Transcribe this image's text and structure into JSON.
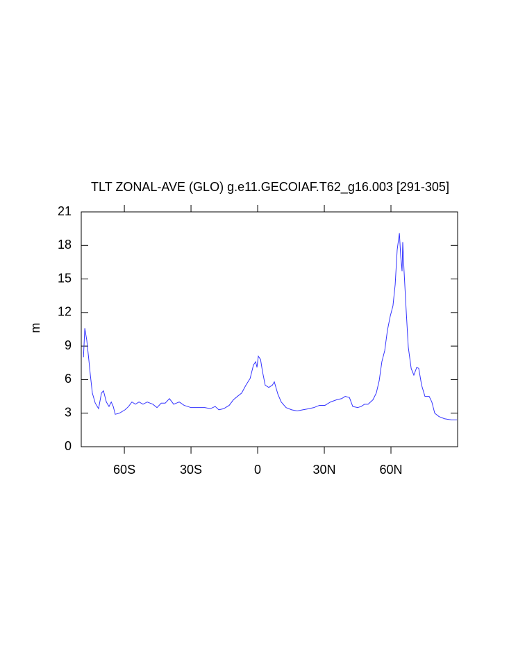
{
  "chart_data": {
    "type": "line",
    "title": "TLT ZONAL-AVE (GLO) g.e11.GECOIAF.T62_g16.003 [291-305]",
    "y_label": "m",
    "xlim": [
      -79.4,
      90
    ],
    "ylim": [
      0,
      21
    ],
    "xticks": [
      {
        "value": -60,
        "label": "60S"
      },
      {
        "value": -30,
        "label": "30S"
      },
      0,
      {
        "value": 30,
        "label": "30N"
      },
      {
        "value": 60,
        "label": "60N"
      }
    ],
    "yticks": [
      0,
      3,
      6,
      9,
      12,
      15,
      18,
      21
    ],
    "x": [
      -78.4,
      -77.8,
      -76.9,
      -75.9,
      -75.3,
      -74.4,
      -73.1,
      -71.6,
      -70.3,
      -69.4,
      -68.1,
      -66.9,
      -65.9,
      -65,
      -64.1,
      -62.2,
      -59.7,
      -58.1,
      -56.6,
      -55,
      -53.4,
      -51.6,
      -49.7,
      -47.2,
      -45.3,
      -43.4,
      -41.6,
      -39.7,
      -37.8,
      -35.3,
      -33.1,
      -30,
      -26.9,
      -23.8,
      -21.3,
      -19.1,
      -17.5,
      -15.3,
      -12.8,
      -10.9,
      -9.1,
      -7.2,
      -5.3,
      -3.4,
      -1.9,
      -0.9,
      -0.3,
      0.3,
      1.3,
      2.2,
      3.4,
      5,
      6.6,
      7.5,
      9.1,
      10.6,
      12.8,
      15.3,
      17.8,
      20.3,
      23.1,
      25.3,
      27.8,
      30.3,
      32.8,
      35.6,
      37.8,
      39.4,
      41.3,
      42.8,
      45,
      46.6,
      48.1,
      49.7,
      51.9,
      53.4,
      54.7,
      55.9,
      57.2,
      58.4,
      59.7,
      60.9,
      61.9,
      62.8,
      63.8,
      64.4,
      65,
      65.3,
      65.9,
      66.9,
      67.8,
      69.1,
      70.3,
      71.6,
      72.5,
      73.8,
      75.3,
      77.2,
      78.4,
      79.7,
      81.6,
      84.1,
      87.2,
      89.7
    ],
    "series": [
      {
        "color": "#3333ff",
        "values": [
          8.0,
          10.6,
          9.5,
          7.6,
          6.4,
          4.8,
          3.9,
          3.4,
          4.8,
          5.0,
          4.0,
          3.6,
          4.0,
          3.6,
          2.9,
          3.0,
          3.3,
          3.6,
          4.0,
          3.8,
          4.0,
          3.8,
          4.0,
          3.8,
          3.5,
          3.9,
          3.9,
          4.3,
          3.8,
          4.0,
          3.7,
          3.5,
          3.5,
          3.5,
          3.4,
          3.6,
          3.3,
          3.4,
          3.7,
          4.2,
          4.5,
          4.8,
          5.5,
          6.1,
          7.3,
          7.6,
          7.1,
          8.1,
          7.8,
          6.7,
          5.5,
          5.3,
          5.5,
          5.8,
          4.7,
          4.0,
          3.5,
          3.3,
          3.2,
          3.3,
          3.4,
          3.5,
          3.7,
          3.7,
          4.0,
          4.2,
          4.3,
          4.5,
          4.4,
          3.6,
          3.5,
          3.6,
          3.8,
          3.8,
          4.2,
          4.8,
          5.9,
          7.6,
          8.6,
          10.4,
          11.7,
          12.6,
          14.5,
          17.6,
          19.1,
          17.0,
          15.7,
          18.3,
          15.7,
          12.0,
          8.9,
          7.0,
          6.4,
          7.1,
          7.0,
          5.5,
          4.5,
          4.5,
          4.0,
          3.0,
          2.7,
          2.5,
          2.4,
          2.4
        ]
      }
    ]
  }
}
